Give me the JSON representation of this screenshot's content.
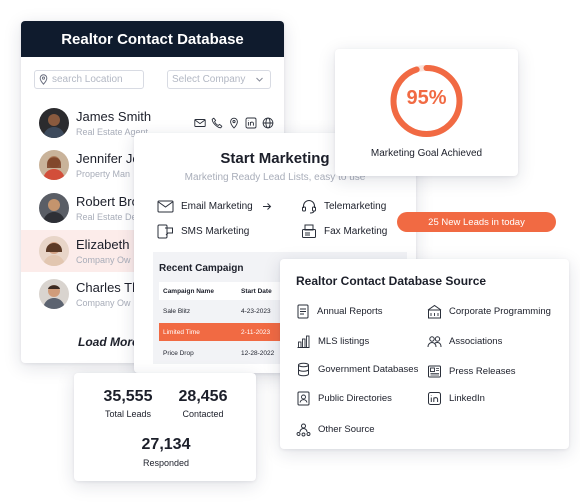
{
  "contact_card": {
    "title": "Realtor Contact Database",
    "location_placeholder": "search Location",
    "company_placeholder": "Select Company",
    "contacts": [
      {
        "name": "James Smith",
        "role": "Real Estate Agent"
      },
      {
        "name": "Jennifer Je",
        "role": "Property Man"
      },
      {
        "name": "Robert Bro",
        "role": "Real Estate De"
      },
      {
        "name": "Elizabeth M",
        "role": "Company Ow"
      },
      {
        "name": "Charles Th",
        "role": "Company Ow"
      }
    ],
    "load_more": "Load More"
  },
  "marketing": {
    "title": "Start Marketing",
    "subtitle": "Marketing Ready Lead Lists, easy to use",
    "options": [
      "Email Marketing",
      "Telemarketing",
      "SMS Marketing",
      "Fax Marketing"
    ],
    "recent_campaign": {
      "title": "Recent Campaign",
      "headers": [
        "Campaign Name",
        "Start Date"
      ],
      "rows": [
        [
          "Sale Blitz",
          "4-23-2023"
        ],
        [
          "Limited Time",
          "2-11-2023"
        ],
        [
          "Price Drop",
          "12-28-2022"
        ]
      ]
    }
  },
  "goal": {
    "percent": 95,
    "percent_label": "95%",
    "label": "Marketing Goal Achieved",
    "accent": "#f16a43"
  },
  "badge": "25 New Leads in today",
  "source": {
    "title": "Realtor Contact Database Source",
    "items": [
      "Annual Reports",
      "Corporate Programming",
      "MLS listings",
      "Associations",
      "Government Databases",
      "Press Releases",
      "Public Directories",
      "LinkedIn",
      "Other Source"
    ]
  },
  "stats": {
    "total_leads": "35,555",
    "total_leads_label": "Total Leads",
    "contacted": "28,456",
    "contacted_label": "Contacted",
    "responded": "27,134",
    "responded_label": "Responded"
  }
}
